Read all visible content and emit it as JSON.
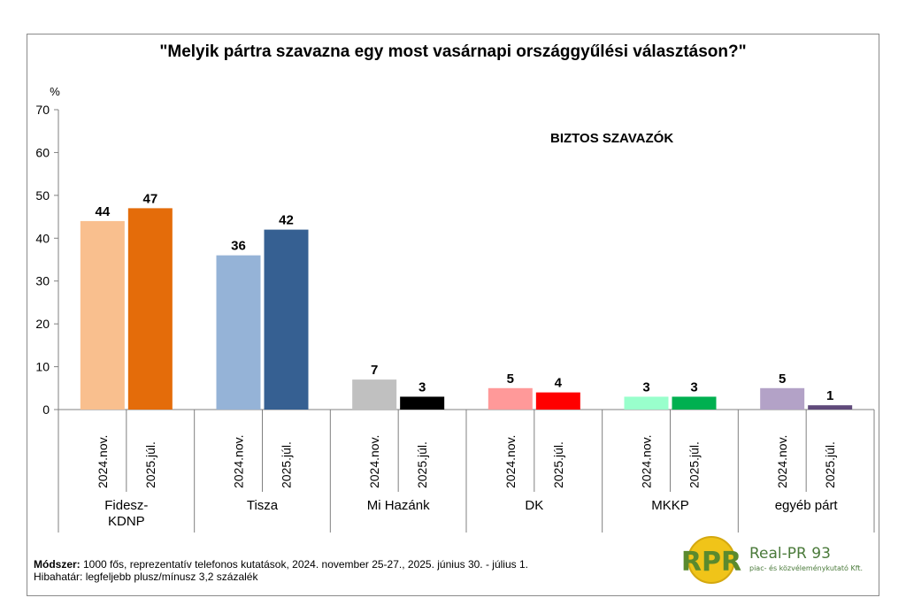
{
  "chart_data": {
    "type": "bar",
    "title": "\"Melyik pártra szavazna egy most vasárnapi országgyűlési választáson?\"",
    "subtitle": "BIZTOS SZAVAZÓK",
    "ylabel": "%",
    "ylim": [
      0,
      70
    ],
    "yticks": [
      0,
      10,
      20,
      30,
      40,
      50,
      60,
      70
    ],
    "periods": [
      "2024.nov.",
      "2025.júl."
    ],
    "groups": [
      {
        "label": "Fidesz-\nKDNP",
        "values": [
          44,
          47
        ],
        "colors": [
          "#f9bf8e",
          "#e46c0a"
        ]
      },
      {
        "label": "Tisza",
        "values": [
          36,
          42
        ],
        "colors": [
          "#95b3d7",
          "#366092"
        ]
      },
      {
        "label": "Mi Hazánk",
        "values": [
          7,
          3
        ],
        "colors": [
          "#c0c0c0",
          "#000000"
        ]
      },
      {
        "label": "DK",
        "values": [
          5,
          4
        ],
        "colors": [
          "#ff9999",
          "#ff0000"
        ]
      },
      {
        "label": "MKKP",
        "values": [
          3,
          3
        ],
        "colors": [
          "#99ffcc",
          "#00b050"
        ]
      },
      {
        "label": "egyéb párt",
        "values": [
          5,
          1
        ],
        "colors": [
          "#b3a2c7",
          "#604a7b"
        ]
      }
    ]
  },
  "footer": {
    "method_label": "Módszer:",
    "method_text": " 1000 fős, reprezentatív telefonos kutatások, 2024. november 25-27., 2025. június 30. - július 1.",
    "error_text": "Hibahatár: legfeljebb plusz/mínusz 3,2 százalék"
  },
  "logo": {
    "mark": "RPR",
    "name": "Real-PR 93",
    "tagline": "piac- és közvéleménykutató Kft."
  }
}
